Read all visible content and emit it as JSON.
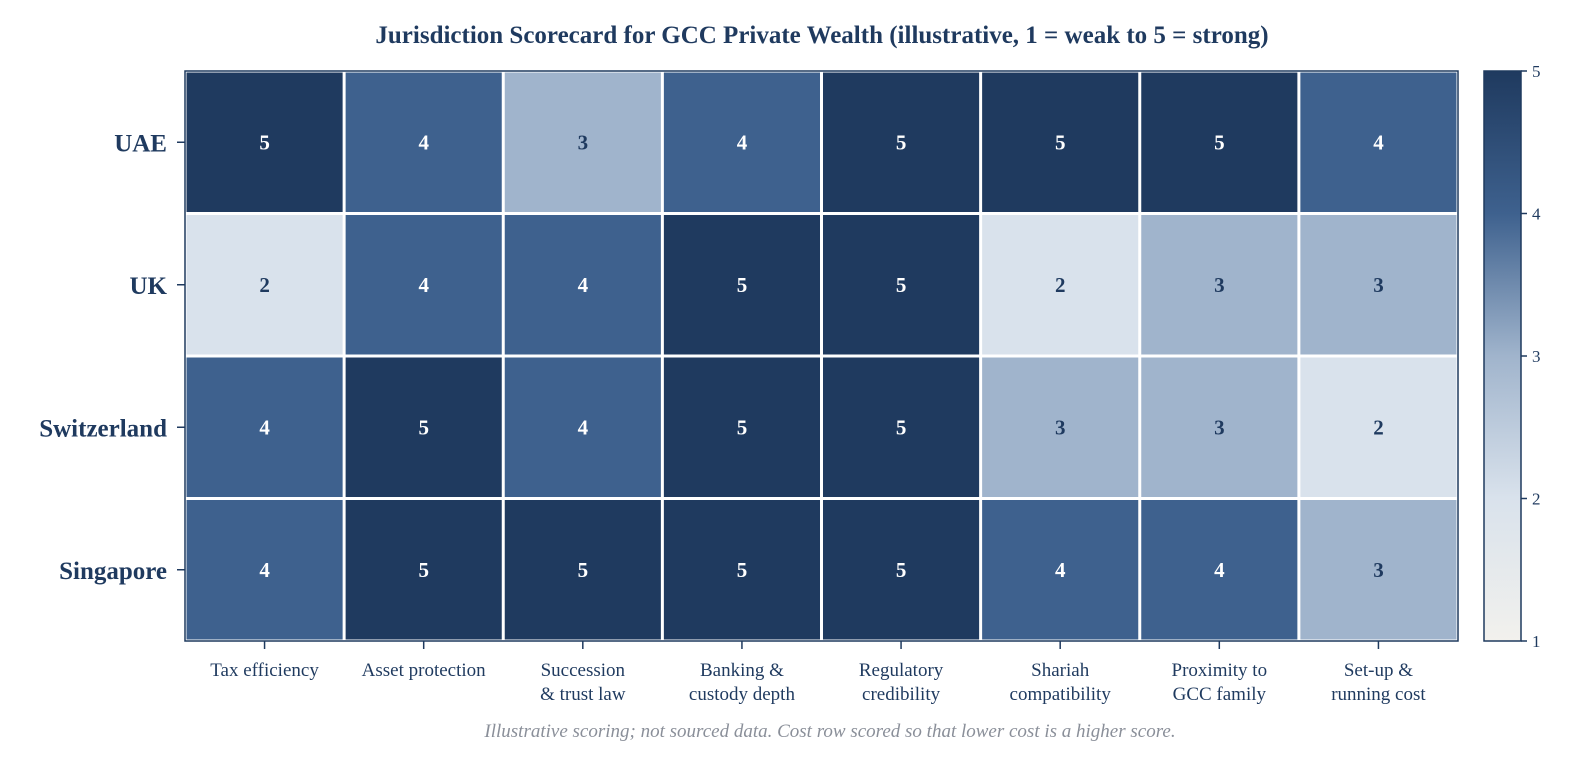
{
  "chart_data": {
    "type": "heatmap",
    "title": "Jurisdiction Scorecard for GCC Private Wealth (illustrative, 1 = weak to 5 = strong)",
    "rows": [
      "UAE",
      "UK",
      "Switzerland",
      "Singapore"
    ],
    "columns": [
      [
        "Tax efficiency"
      ],
      [
        "Asset protection"
      ],
      [
        "Succession",
        "& trust law"
      ],
      [
        "Banking &",
        "custody depth"
      ],
      [
        "Regulatory",
        "credibility"
      ],
      [
        "Shariah",
        "compatibility"
      ],
      [
        "Proximity to",
        "GCC family"
      ],
      [
        "Set-up &",
        "running cost"
      ]
    ],
    "values": [
      [
        5,
        4,
        3,
        4,
        5,
        5,
        5,
        4
      ],
      [
        2,
        4,
        4,
        5,
        5,
        2,
        3,
        3
      ],
      [
        4,
        5,
        4,
        5,
        5,
        3,
        3,
        2
      ],
      [
        4,
        5,
        5,
        5,
        5,
        4,
        4,
        3
      ]
    ],
    "colorbar": {
      "range": [
        1,
        5
      ],
      "ticks": [
        "1",
        "2",
        "3",
        "4",
        "5"
      ]
    },
    "colors": {
      "1": "#f2f1ed",
      "2": "#d9e2ec",
      "3": "#a0b4cc",
      "4": "#3e618e",
      "5": "#1f3a5f",
      "frame": "#1f3a5f",
      "text_dark": "#1f3a5f",
      "text_light": "#ffffff"
    },
    "note": "Illustrative scoring; not sourced data. Cost row scored so that lower cost is a higher score."
  }
}
